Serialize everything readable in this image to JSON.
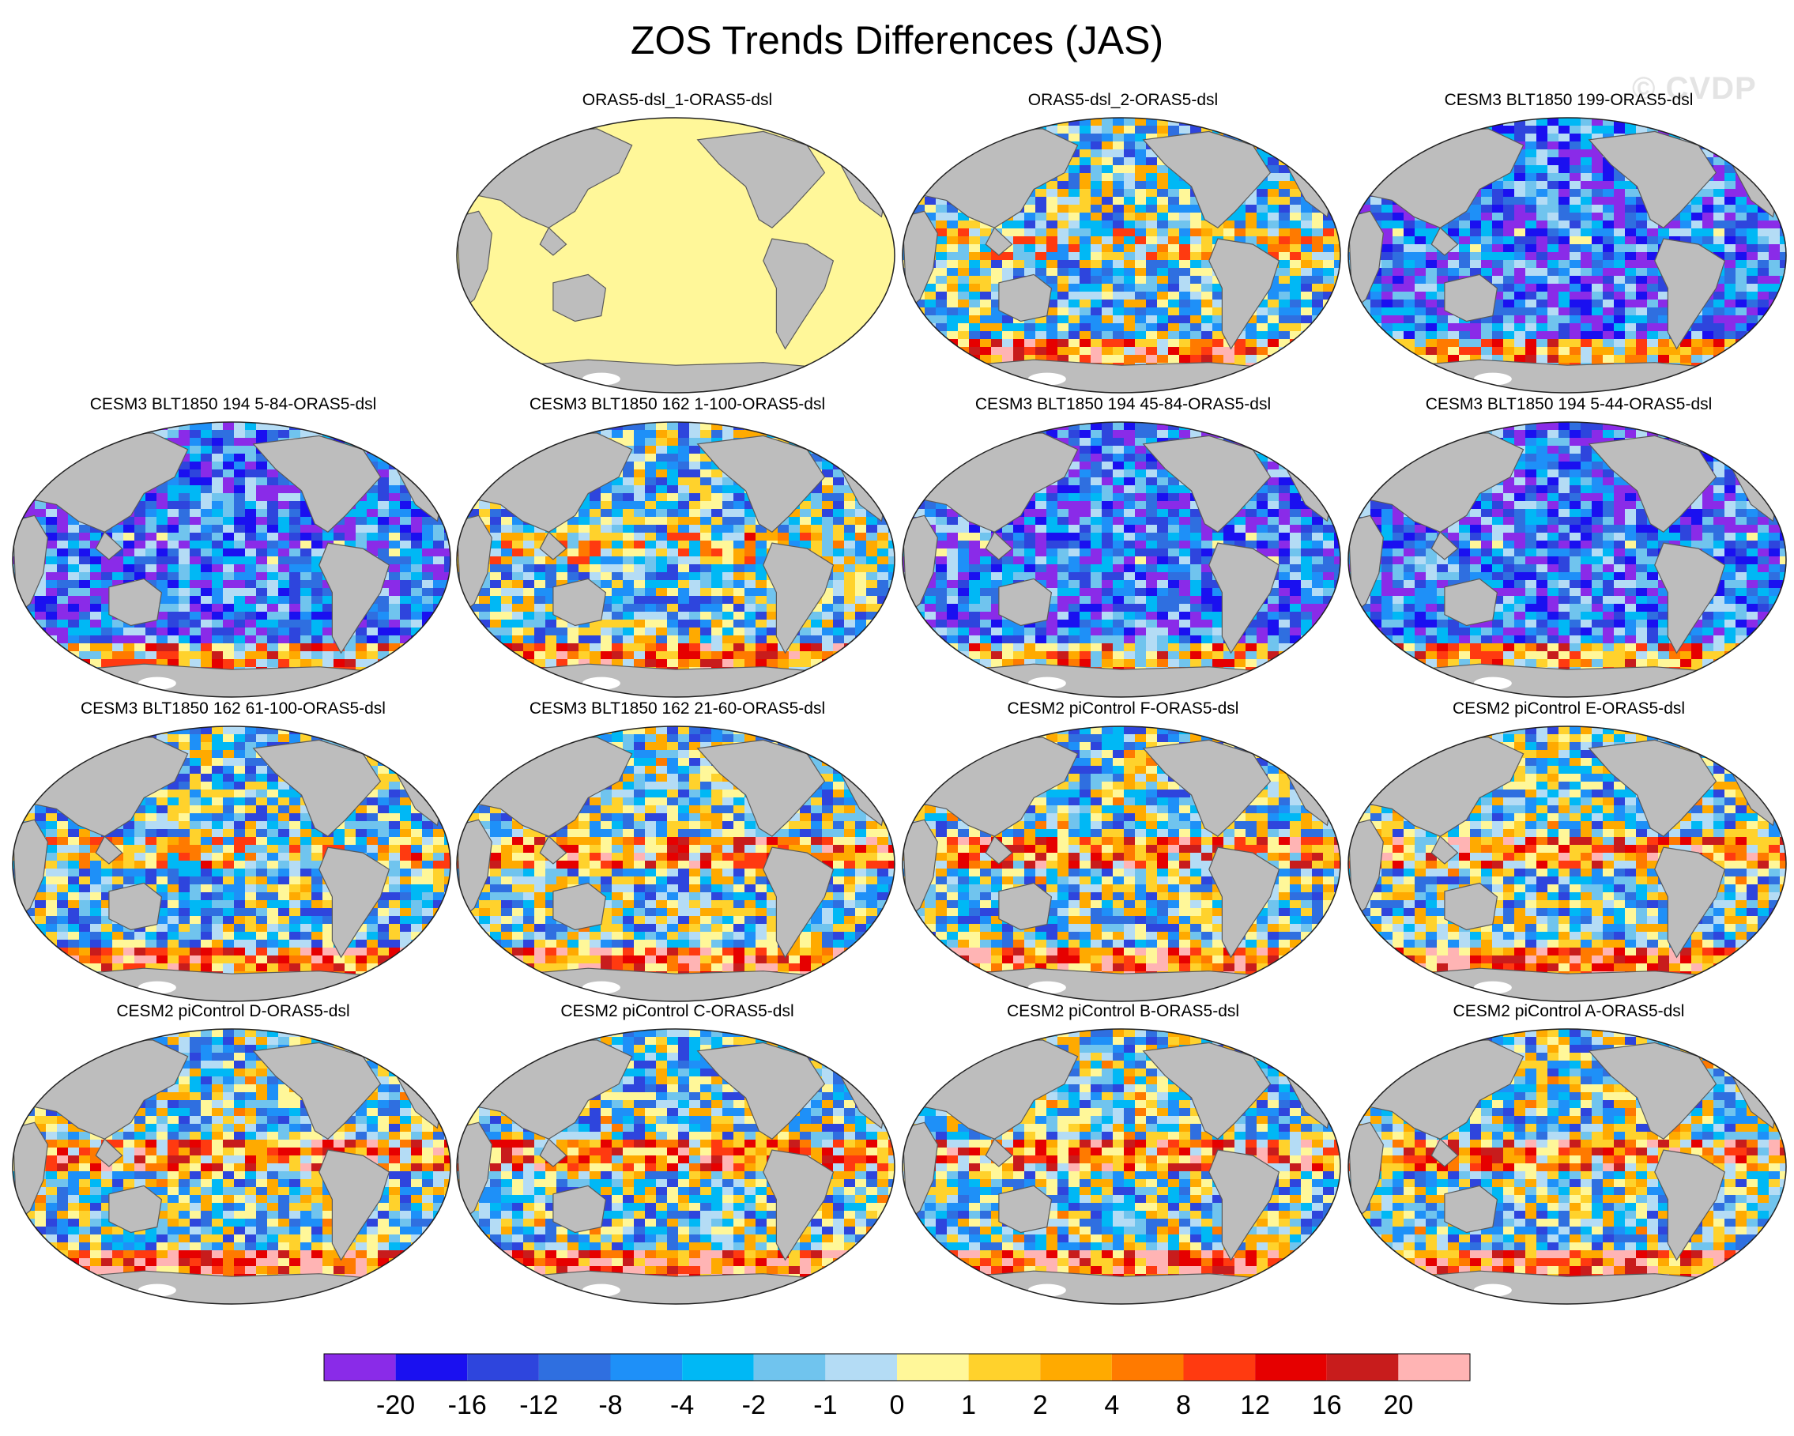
{
  "title": "ZOS Trends Differences (JAS)",
  "watermark": "© CVDP",
  "panels": [
    {
      "label": "ORAS5-dsl_1-ORAS5-dsl",
      "field": "uniform"
    },
    {
      "label": "ORAS5-dsl_2-ORAS5-dsl",
      "field": "mixed"
    },
    {
      "label": "CESM3 BLT1850 199-ORAS5-dsl",
      "field": "negative"
    },
    {
      "label": "CESM3 BLT1850 194 5-84-ORAS5-dsl",
      "field": "negative"
    },
    {
      "label": "CESM3 BLT1850 162 1-100-ORAS5-dsl",
      "field": "mixed"
    },
    {
      "label": "CESM3 BLT1850 194 45-84-ORAS5-dsl",
      "field": "negative"
    },
    {
      "label": "CESM3 BLT1850 194 5-44-ORAS5-dsl",
      "field": "negative"
    },
    {
      "label": "CESM3 BLT1850 162 61-100-ORAS5-dsl",
      "field": "mixed"
    },
    {
      "label": "CESM3 BLT1850 162 21-60-ORAS5-dsl",
      "field": "positive"
    },
    {
      "label": "CESM2 piControl F-ORAS5-dsl",
      "field": "positive"
    },
    {
      "label": "CESM2 piControl E-ORAS5-dsl",
      "field": "positive"
    },
    {
      "label": "CESM2 piControl D-ORAS5-dsl",
      "field": "positive"
    },
    {
      "label": "CESM2 piControl C-ORAS5-dsl",
      "field": "positive"
    },
    {
      "label": "CESM2 piControl B-ORAS5-dsl",
      "field": "positive"
    },
    {
      "label": "CESM2 piControl A-ORAS5-dsl",
      "field": "positive"
    }
  ],
  "colors": {
    "land": "#bdbdbd",
    "coast": "#5a5a5a",
    "uniform_ocean": "#fff799",
    "ice": "#ffffff"
  },
  "colorbar": {
    "labels": [
      "-20",
      "-16",
      "-12",
      "-8",
      "-4",
      "-2",
      "-1",
      "0",
      "1",
      "2",
      "4",
      "8",
      "12",
      "16",
      "20"
    ],
    "colors": [
      "#8a2be8",
      "#1a10f0",
      "#2e45dd",
      "#2f6fe0",
      "#1e90f8",
      "#00b8f5",
      "#70c4ee",
      "#b4dcf5",
      "#fff799",
      "#ffd22c",
      "#ffaa00",
      "#ff7a00",
      "#ff3a10",
      "#e60000",
      "#c81c1c",
      "#ffb4b4"
    ]
  }
}
